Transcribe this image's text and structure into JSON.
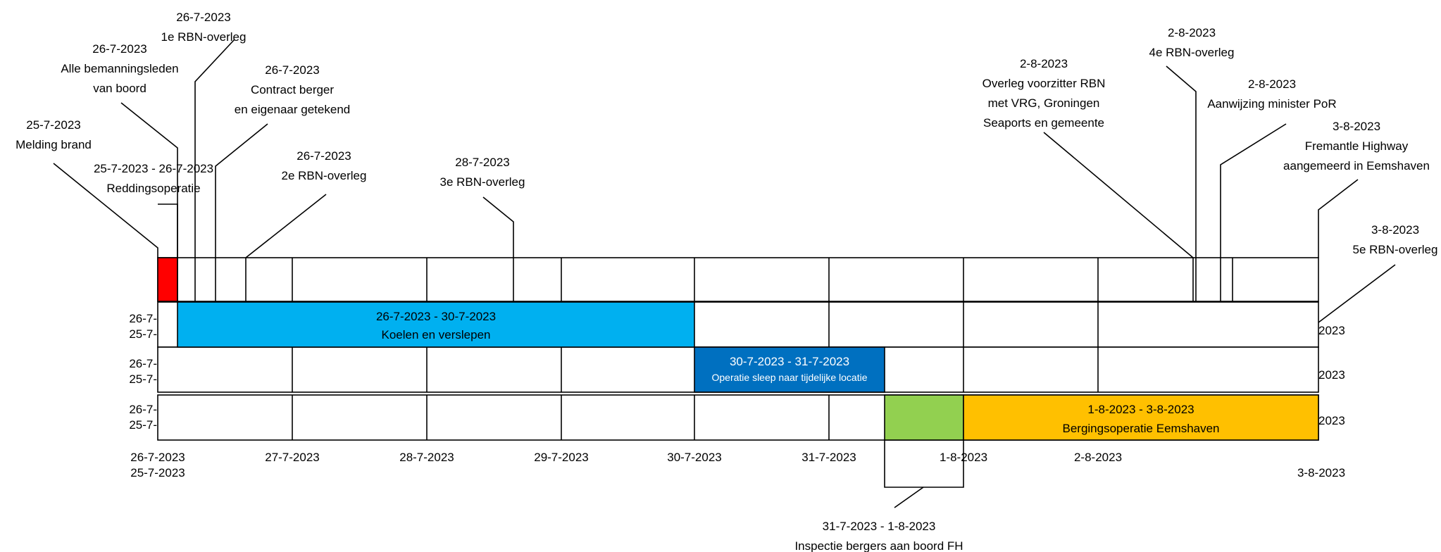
{
  "colors": {
    "red": "#FF0000",
    "light_blue": "#00B0F0",
    "dark_blue": "#0070C0",
    "green": "#92D050",
    "amber": "#FFC000",
    "line": "#000000"
  },
  "axis": {
    "ticks": [
      "26-7-2023",
      "27-7-2023",
      "28-7-2023",
      "29-7-2023",
      "30-7-2023",
      "31-7-2023",
      "1-8-2023",
      "2-8-2023",
      "3-8-2023"
    ],
    "start_label": "25-7-2023",
    "row_edge_left_1": "26-7-",
    "row_edge_left_2": "25-7-",
    "row_edge_right": "2023"
  },
  "bars": [
    {
      "dates": "",
      "label": "",
      "color": "red"
    },
    {
      "dates": "26-7-2023 - 30-7-2023",
      "label": "Koelen en verslepen",
      "color": "light_blue"
    },
    {
      "dates": "30-7-2023 - 31-7-2023",
      "label": "Operatie sleep naar tijdelijke locatie",
      "color": "dark_blue"
    },
    {
      "dates": "",
      "label": "",
      "color": "green"
    },
    {
      "dates": "1-8-2023 - 3-8-2023",
      "label": "Bergingsoperatie Eemshaven",
      "color": "amber"
    }
  ],
  "callouts": {
    "melding": {
      "date": "25-7-2023",
      "lines": [
        "Melding brand"
      ]
    },
    "redding": {
      "date": "25-7-2023 - 26-7-2023",
      "lines": [
        "Reddingsoperatie"
      ]
    },
    "bemanning": {
      "date": "26-7-2023",
      "lines": [
        "Alle bemanningsleden",
        "van boord"
      ]
    },
    "rbn1": {
      "date": "26-7-2023",
      "lines": [
        "1e RBN-overleg"
      ]
    },
    "contract": {
      "date": "26-7-2023",
      "lines": [
        "Contract berger",
        "en eigenaar getekend"
      ]
    },
    "rbn2": {
      "date": "26-7-2023",
      "lines": [
        "2e RBN-overleg"
      ]
    },
    "rbn3": {
      "date": "28-7-2023",
      "lines": [
        "3e RBN-overleg"
      ]
    },
    "voorzitter": {
      "date": "2-8-2023",
      "lines": [
        "Overleg voorzitter RBN",
        "met VRG, Groningen",
        "Seaports en gemeente"
      ]
    },
    "rbn4": {
      "date": "2-8-2023",
      "lines": [
        "4e RBN-overleg"
      ]
    },
    "minister": {
      "date": "2-8-2023",
      "lines": [
        "Aanwijzing minister PoR"
      ]
    },
    "fremantle": {
      "date": "3-8-2023",
      "lines": [
        "Fremantle Highway",
        "aangemeerd in Eemshaven"
      ]
    },
    "rbn5": {
      "date": "3-8-2023",
      "lines": [
        "5e RBN-overleg"
      ]
    },
    "inspectie": {
      "date": "31-7-2023 - 1-8-2023",
      "lines": [
        "Inspectie bergers aan boord FH"
      ]
    }
  }
}
